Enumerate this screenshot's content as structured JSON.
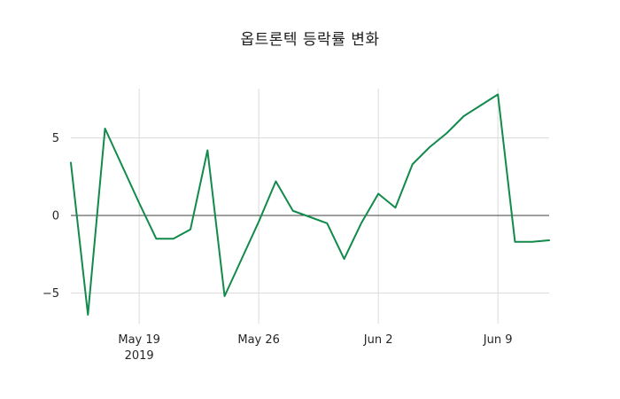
{
  "title": "옵트론텍 등락률 변화",
  "chart_data": {
    "type": "line",
    "title": "옵트론텍 등락률 변화",
    "xlabel": "",
    "ylabel": "",
    "line_color": "#118a4b",
    "grid_color": "#dcdcdc",
    "zero_line_color": "#3f3f3f",
    "text_color": "#262626",
    "legend": "none",
    "grid": "on",
    "ylim": [
      -6.97,
      8.17
    ],
    "x": [
      "2019-05-15",
      "2019-05-16",
      "2019-05-17",
      "2019-05-18",
      "2019-05-19",
      "2019-05-20",
      "2019-05-21",
      "2019-05-22",
      "2019-05-23",
      "2019-05-24",
      "2019-05-25",
      "2019-05-26",
      "2019-05-27",
      "2019-05-28",
      "2019-05-29",
      "2019-05-30",
      "2019-05-31",
      "2019-06-01",
      "2019-06-02",
      "2019-06-03",
      "2019-06-04",
      "2019-06-05",
      "2019-06-06",
      "2019-06-07",
      "2019-06-08",
      "2019-06-09",
      "2019-06-10",
      "2019-06-11",
      "2019-06-12"
    ],
    "values": [
      3.4,
      -6.4,
      5.6,
      3.2,
      0.8,
      -1.5,
      -1.5,
      -0.9,
      4.2,
      -5.2,
      -2.8,
      -0.4,
      2.2,
      0.3,
      -0.1,
      -0.5,
      -2.8,
      -0.5,
      1.4,
      0.5,
      3.3,
      4.4,
      5.3,
      6.4,
      7.1,
      7.8,
      -1.7,
      -1.7,
      -1.6
    ],
    "x_ticks": [
      {
        "index": 4,
        "label": "May 19",
        "sublabel": "2019"
      },
      {
        "index": 11,
        "label": "May 26",
        "sublabel": ""
      },
      {
        "index": 18,
        "label": "Jun 2",
        "sublabel": ""
      },
      {
        "index": 25,
        "label": "Jun 9",
        "sublabel": ""
      }
    ],
    "y_ticks": [
      {
        "value": 5,
        "label": "5"
      },
      {
        "value": 0,
        "label": "0"
      },
      {
        "value": -5,
        "label": "−5"
      }
    ]
  }
}
